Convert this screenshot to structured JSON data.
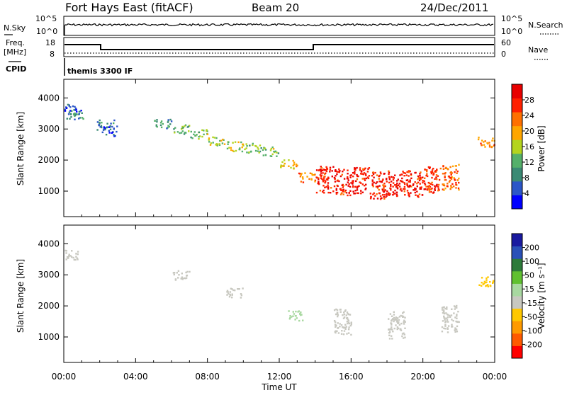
{
  "header": {
    "station": "Fort Hays East (fitACF)",
    "beam": "Beam 20",
    "date": "24/Dec/2011"
  },
  "nsky_panel": {
    "left_label": "N.Sky",
    "right_label": "N.Search",
    "ticks_left": [
      "10^5",
      "10^0"
    ],
    "ticks_right": [
      "10^5",
      "10^0"
    ]
  },
  "freq_panel": {
    "left_label_1": "Freq.",
    "left_label_2": "[MHz]",
    "ticks_left": [
      "18",
      "8"
    ],
    "ticks_right": [
      "60",
      "0"
    ],
    "right_label": "Nave",
    "cpid_label": "CPID",
    "cpid_text": "themis 3300 IF"
  },
  "colors": {
    "power": [
      "#0000ff",
      "#2b56c8",
      "#3b8a74",
      "#55b06a",
      "#b4d41e",
      "#ffa600",
      "#ff7000",
      "#ff2000",
      "#e80000"
    ],
    "velocity": [
      "#ff0000",
      "#ff5a00",
      "#ff9a00",
      "#ffc800",
      "#c8c8c0",
      "#a8d8a0",
      "#60c030",
      "#2d7a3a",
      "#2a50b8",
      "#1a1aa0"
    ]
  },
  "chart_data": [
    {
      "type": "heatmap",
      "name_key": "power",
      "ylabel": "Slant Range [km]",
      "yticks": [
        1000,
        2000,
        3000,
        4000
      ],
      "ylim": [
        180,
        4600
      ],
      "xlim": [
        0,
        24
      ],
      "colorbar_label": "Power [dB]",
      "colorbar_ticks": [
        "4",
        "8",
        "12",
        "16",
        "20",
        "24",
        "28"
      ],
      "colorbar_range": [
        0,
        32
      ],
      "data": [
        {
          "t": 0.5,
          "r": 3650,
          "v": 6
        },
        {
          "t": 0.6,
          "r": 3450,
          "v": 10
        },
        {
          "t": 2.3,
          "r": 3150,
          "v": 8
        },
        {
          "t": 2.5,
          "r": 2950,
          "v": 6
        },
        {
          "t": 5.5,
          "r": 3200,
          "v": 10
        },
        {
          "t": 6.5,
          "r": 3000,
          "v": 12
        },
        {
          "t": 7.5,
          "r": 2850,
          "v": 14
        },
        {
          "t": 8.5,
          "r": 2650,
          "v": 16
        },
        {
          "t": 9.5,
          "r": 2450,
          "v": 16
        },
        {
          "t": 10.5,
          "r": 2400,
          "v": 14
        },
        {
          "t": 11.5,
          "r": 2300,
          "v": 14
        },
        {
          "t": 12.5,
          "r": 1900,
          "v": 18
        },
        {
          "t": 13.5,
          "r": 1450,
          "v": 22
        },
        {
          "t": 14.5,
          "r": 1400,
          "v": 28
        },
        {
          "t": 15.5,
          "r": 1300,
          "v": 28
        },
        {
          "t": 16.5,
          "r": 1350,
          "v": 28
        },
        {
          "t": 17.5,
          "r": 1200,
          "v": 28
        },
        {
          "t": 18.5,
          "r": 1300,
          "v": 28
        },
        {
          "t": 19.5,
          "r": 1250,
          "v": 28
        },
        {
          "t": 20.5,
          "r": 1400,
          "v": 26
        },
        {
          "t": 21.5,
          "r": 1450,
          "v": 24
        },
        {
          "t": 23.5,
          "r": 2600,
          "v": 22
        }
      ]
    },
    {
      "type": "heatmap",
      "name_key": "velocity",
      "ylabel": "Slant Range [km]",
      "yticks": [
        1000,
        2000,
        3000,
        4000
      ],
      "ylim": [
        180,
        4600
      ],
      "xlim": [
        0,
        24
      ],
      "xticks": [
        "00:00",
        "04:00",
        "08:00",
        "12:00",
        "16:00",
        "20:00",
        "00:00"
      ],
      "xlabel": "Time UT",
      "colorbar_label": "Velocity [m s⁻¹]",
      "colorbar_ticks": [
        "-200",
        "-100",
        "-50",
        "-15",
        "15",
        "50",
        "100",
        "200"
      ],
      "data": [
        {
          "t": 0.5,
          "r": 3650,
          "v": 0
        },
        {
          "t": 6.5,
          "r": 3000,
          "v": 0
        },
        {
          "t": 9.5,
          "r": 2450,
          "v": 0
        },
        {
          "t": 12.8,
          "r": 1700,
          "v": 40
        },
        {
          "t": 15.5,
          "r": 1500,
          "v": 0
        },
        {
          "t": 18.5,
          "r": 1400,
          "v": 0
        },
        {
          "t": 21.5,
          "r": 1600,
          "v": 0
        },
        {
          "t": 23.5,
          "r": 2800,
          "v": -20
        }
      ]
    }
  ]
}
